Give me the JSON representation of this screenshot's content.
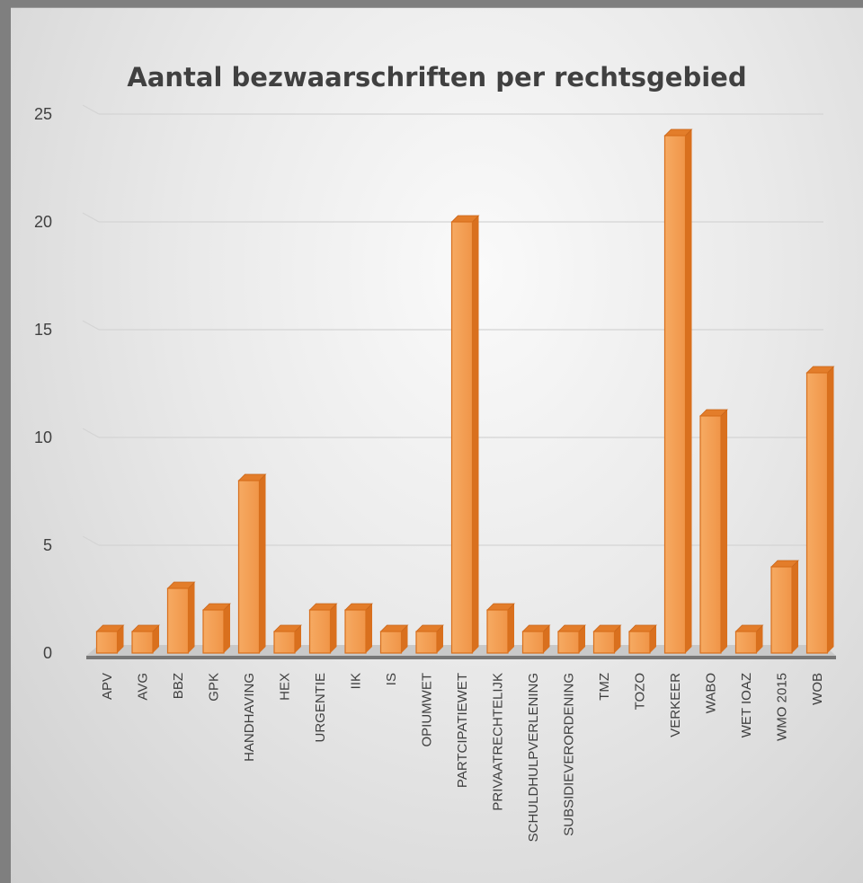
{
  "chart_data": {
    "type": "bar",
    "title": "Aantal bezwaarschriften per rechtsgebied",
    "xlabel": "",
    "ylabel": "",
    "ylim": [
      0,
      25
    ],
    "yticks": [
      0,
      5,
      10,
      15,
      20,
      25
    ],
    "grid": true,
    "legend": "none",
    "bar_color": "#f4a25a",
    "bar_edge_color": "#d86f1c",
    "categories": [
      "APV",
      "AVG",
      "BBZ",
      "GPK",
      "HANDHAVING",
      "HEX",
      "URGENTIE",
      "IIK",
      "IS",
      "OPIUMWET",
      "PARTCIPATIEWET",
      "PRIVAATRECHTELIJK",
      "SCHULDHULPVERLENING",
      "SUBSIDIEVERORDENING",
      "TMZ",
      "TOZO",
      "VERKEER",
      "WABO",
      "WET IOAZ",
      "WMO 2015",
      "WOB"
    ],
    "values": [
      1,
      1,
      3,
      2,
      8,
      1,
      2,
      2,
      1,
      1,
      20,
      2,
      1,
      1,
      1,
      1,
      24,
      11,
      1,
      4,
      13
    ]
  }
}
